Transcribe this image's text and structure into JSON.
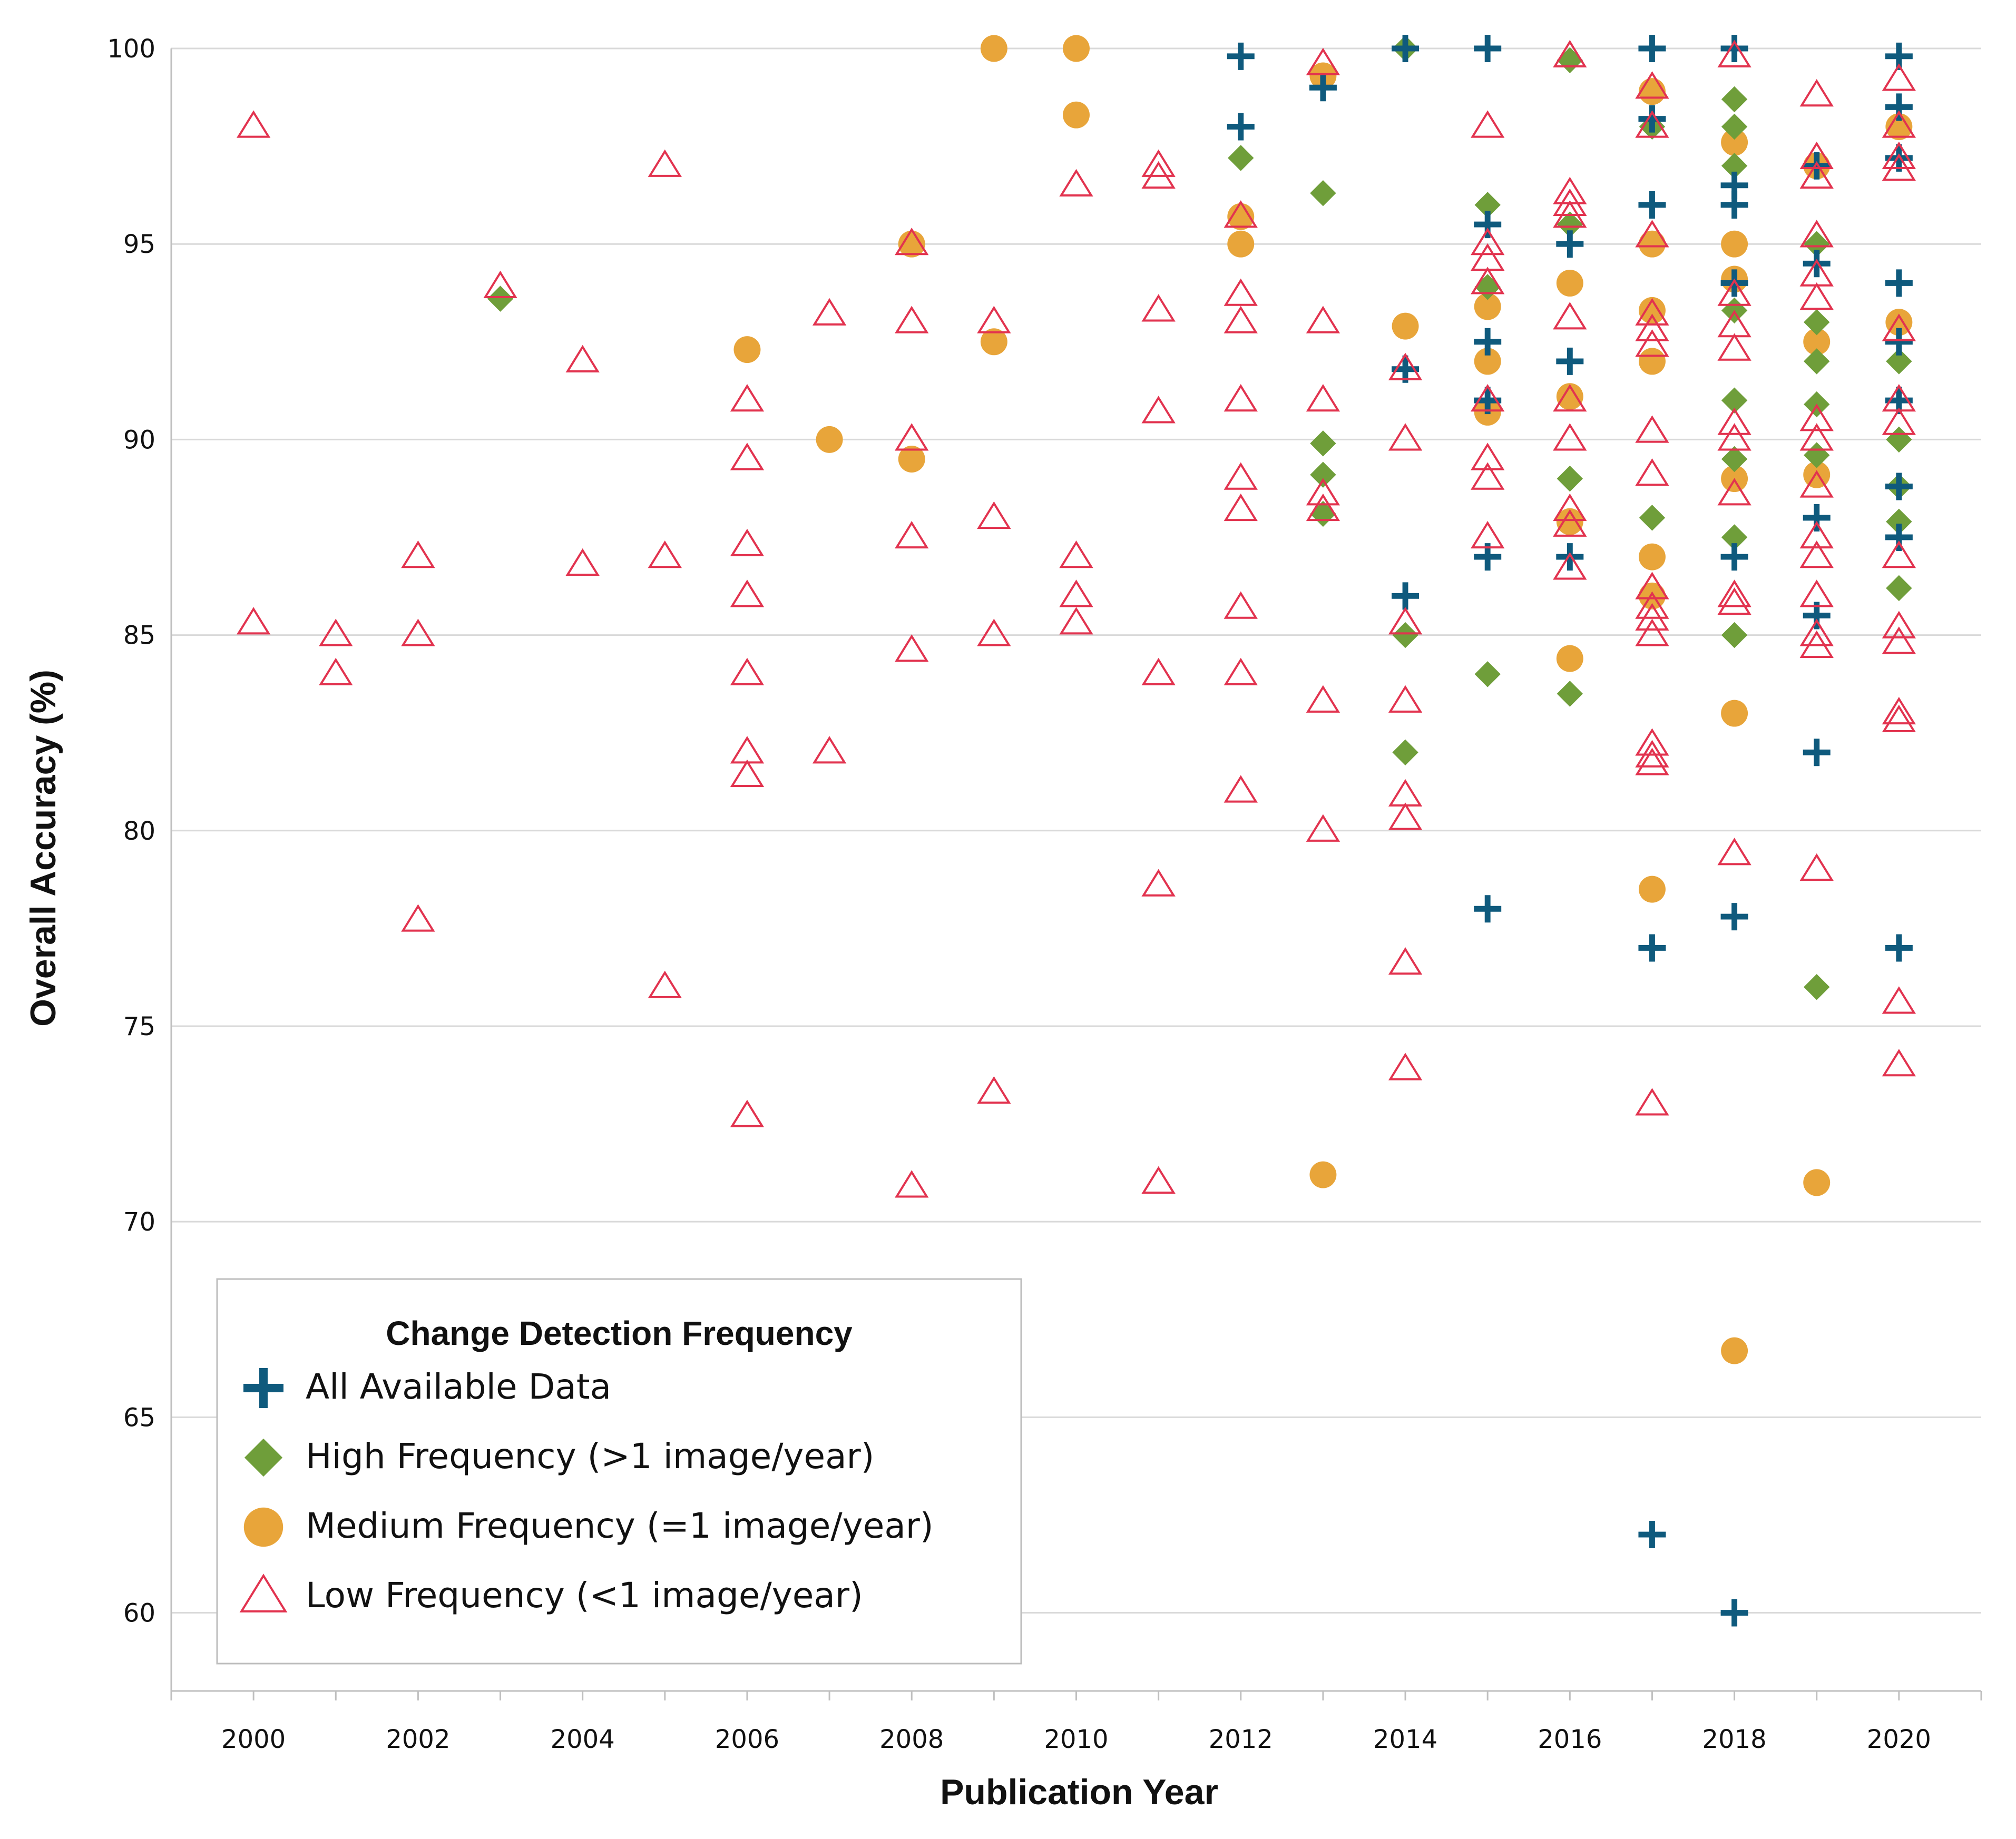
{
  "chart_data": {
    "type": "scatter",
    "title": "",
    "xlabel": "Publication Year",
    "ylabel": "Overall Accuracy (%)",
    "xlim": [
      1999,
      2021
    ],
    "ylim": [
      58,
      100
    ],
    "x_ticks": [
      2000,
      2002,
      2004,
      2006,
      2008,
      2010,
      2012,
      2014,
      2016,
      2018,
      2020
    ],
    "y_ticks": [
      60,
      65,
      70,
      75,
      80,
      85,
      90,
      95,
      100
    ],
    "grid": "horizontal",
    "legend_title": "Change Detection Frequency",
    "legend_position": "bottom-left",
    "series": [
      {
        "name": "All Available Data",
        "marker": "plus",
        "color": "#0f5a7d",
        "points": [
          [
            2012,
            99.8
          ],
          [
            2012,
            98
          ],
          [
            2013,
            99
          ],
          [
            2014,
            100
          ],
          [
            2014,
            91.8
          ],
          [
            2014,
            86
          ],
          [
            2015,
            100
          ],
          [
            2015,
            95.5
          ],
          [
            2015,
            92.5
          ],
          [
            2015,
            91
          ],
          [
            2015,
            87
          ],
          [
            2015,
            78
          ],
          [
            2016,
            95
          ],
          [
            2016,
            92
          ],
          [
            2016,
            87
          ],
          [
            2017,
            100
          ],
          [
            2017,
            98.2
          ],
          [
            2017,
            96
          ],
          [
            2017,
            77
          ],
          [
            2017,
            62
          ],
          [
            2018,
            100
          ],
          [
            2018,
            96.5
          ],
          [
            2018,
            96
          ],
          [
            2018,
            94
          ],
          [
            2018,
            87
          ],
          [
            2018,
            77.8
          ],
          [
            2018,
            60
          ],
          [
            2019,
            97
          ],
          [
            2019,
            94.5
          ],
          [
            2019,
            88
          ],
          [
            2019,
            85.5
          ],
          [
            2019,
            82
          ],
          [
            2020,
            99.8
          ],
          [
            2020,
            98.5
          ],
          [
            2020,
            97.2
          ],
          [
            2020,
            94
          ],
          [
            2020,
            92.5
          ],
          [
            2020,
            91
          ],
          [
            2020,
            88.8
          ],
          [
            2020,
            87.5
          ],
          [
            2020,
            77
          ]
        ]
      },
      {
        "name": "High Frequency (>1 image/year)",
        "marker": "diamond",
        "color": "#6f9e3a",
        "points": [
          [
            2003,
            93.6
          ],
          [
            2012,
            97.2
          ],
          [
            2013,
            96.3
          ],
          [
            2013,
            89.9
          ],
          [
            2013,
            89.1
          ],
          [
            2013,
            88.1
          ],
          [
            2014,
            100
          ],
          [
            2014,
            85
          ],
          [
            2014,
            82
          ],
          [
            2015,
            96
          ],
          [
            2015,
            93.9
          ],
          [
            2015,
            84
          ],
          [
            2016,
            99.7
          ],
          [
            2016,
            95.5
          ],
          [
            2016,
            89
          ],
          [
            2016,
            83.5
          ],
          [
            2017,
            98
          ],
          [
            2017,
            88
          ],
          [
            2018,
            98.7
          ],
          [
            2018,
            98
          ],
          [
            2018,
            97
          ],
          [
            2018,
            93.3
          ],
          [
            2018,
            91
          ],
          [
            2018,
            89.5
          ],
          [
            2018,
            87.5
          ],
          [
            2018,
            85
          ],
          [
            2019,
            95
          ],
          [
            2019,
            93
          ],
          [
            2019,
            92
          ],
          [
            2019,
            90.9
          ],
          [
            2019,
            89.6
          ],
          [
            2019,
            76
          ],
          [
            2020,
            92
          ],
          [
            2020,
            90
          ],
          [
            2020,
            88.8
          ],
          [
            2020,
            87.9
          ],
          [
            2020,
            86.2
          ]
        ]
      },
      {
        "name": "Medium Frequency (=1 image/year)",
        "marker": "circle",
        "color": "#e8a53a",
        "points": [
          [
            2006,
            92.3
          ],
          [
            2007,
            90
          ],
          [
            2008,
            95
          ],
          [
            2008,
            89.5
          ],
          [
            2009,
            100
          ],
          [
            2009,
            92.5
          ],
          [
            2010,
            100
          ],
          [
            2010,
            98.3
          ],
          [
            2012,
            95.7
          ],
          [
            2012,
            95
          ],
          [
            2013,
            99.3
          ],
          [
            2013,
            71.2
          ],
          [
            2014,
            92.9
          ],
          [
            2015,
            93.4
          ],
          [
            2015,
            92
          ],
          [
            2015,
            90.7
          ],
          [
            2016,
            94
          ],
          [
            2016,
            91.1
          ],
          [
            2016,
            87.9
          ],
          [
            2016,
            84.4
          ],
          [
            2017,
            98.9
          ],
          [
            2017,
            95
          ],
          [
            2017,
            93.3
          ],
          [
            2017,
            92
          ],
          [
            2017,
            87
          ],
          [
            2017,
            86
          ],
          [
            2017,
            78.5
          ],
          [
            2018,
            97.6
          ],
          [
            2018,
            95
          ],
          [
            2018,
            94.1
          ],
          [
            2018,
            89
          ],
          [
            2018,
            83
          ],
          [
            2018,
            66.7
          ],
          [
            2019,
            97
          ],
          [
            2019,
            92.5
          ],
          [
            2019,
            89.1
          ],
          [
            2019,
            71
          ],
          [
            2020,
            98
          ],
          [
            2020,
            93
          ]
        ]
      },
      {
        "name": "Low Frequency (<1 image/year)",
        "marker": "triangle-open",
        "color": "#e2334f",
        "points": [
          [
            2000,
            98
          ],
          [
            2000,
            85.3
          ],
          [
            2001,
            85
          ],
          [
            2001,
            84
          ],
          [
            2002,
            87
          ],
          [
            2002,
            85
          ],
          [
            2002,
            77.7
          ],
          [
            2003,
            93.9
          ],
          [
            2004,
            92
          ],
          [
            2004,
            86.8
          ],
          [
            2005,
            97
          ],
          [
            2005,
            87
          ],
          [
            2005,
            76
          ],
          [
            2006,
            91
          ],
          [
            2006,
            89.5
          ],
          [
            2006,
            87.3
          ],
          [
            2006,
            86
          ],
          [
            2006,
            84
          ],
          [
            2006,
            82
          ],
          [
            2006,
            81.4
          ],
          [
            2006,
            72.7
          ],
          [
            2007,
            93.2
          ],
          [
            2007,
            82
          ],
          [
            2008,
            95
          ],
          [
            2008,
            93
          ],
          [
            2008,
            90
          ],
          [
            2008,
            87.5
          ],
          [
            2008,
            84.6
          ],
          [
            2008,
            70.9
          ],
          [
            2009,
            93
          ],
          [
            2009,
            88
          ],
          [
            2009,
            85
          ],
          [
            2009,
            73.3
          ],
          [
            2010,
            96.5
          ],
          [
            2010,
            87
          ],
          [
            2010,
            86
          ],
          [
            2010,
            85.3
          ],
          [
            2011,
            97
          ],
          [
            2011,
            96.7
          ],
          [
            2011,
            93.3
          ],
          [
            2011,
            90.7
          ],
          [
            2011,
            84
          ],
          [
            2011,
            78.6
          ],
          [
            2011,
            71
          ],
          [
            2012,
            95.7
          ],
          [
            2012,
            93.7
          ],
          [
            2012,
            93
          ],
          [
            2012,
            91
          ],
          [
            2012,
            89
          ],
          [
            2012,
            88.2
          ],
          [
            2012,
            85.7
          ],
          [
            2012,
            84
          ],
          [
            2012,
            81
          ],
          [
            2013,
            99.6
          ],
          [
            2013,
            93
          ],
          [
            2013,
            91
          ],
          [
            2013,
            88.6
          ],
          [
            2013,
            88.2
          ],
          [
            2013,
            83.3
          ],
          [
            2013,
            80
          ],
          [
            2014,
            91.8
          ],
          [
            2014,
            90
          ],
          [
            2014,
            85.3
          ],
          [
            2014,
            83.3
          ],
          [
            2014,
            80.9
          ],
          [
            2014,
            80.3
          ],
          [
            2014,
            76.6
          ],
          [
            2014,
            73.9
          ],
          [
            2015,
            98
          ],
          [
            2015,
            95
          ],
          [
            2015,
            94.6
          ],
          [
            2015,
            94
          ],
          [
            2015,
            91
          ],
          [
            2015,
            89.5
          ],
          [
            2015,
            89
          ],
          [
            2015,
            87.5
          ],
          [
            2016,
            99.8
          ],
          [
            2016,
            96.3
          ],
          [
            2016,
            96
          ],
          [
            2016,
            95.7
          ],
          [
            2016,
            93.1
          ],
          [
            2016,
            91
          ],
          [
            2016,
            90
          ],
          [
            2016,
            88.2
          ],
          [
            2016,
            87.8
          ],
          [
            2016,
            86.7
          ],
          [
            2017,
            99
          ],
          [
            2017,
            98
          ],
          [
            2017,
            95.2
          ],
          [
            2017,
            93.2
          ],
          [
            2017,
            92.8
          ],
          [
            2017,
            92.4
          ],
          [
            2017,
            90.2
          ],
          [
            2017,
            89.1
          ],
          [
            2017,
            86.2
          ],
          [
            2017,
            85.7
          ],
          [
            2017,
            85.4
          ],
          [
            2017,
            85
          ],
          [
            2017,
            82.2
          ],
          [
            2017,
            81.9
          ],
          [
            2017,
            81.7
          ],
          [
            2017,
            73
          ],
          [
            2018,
            99.8
          ],
          [
            2018,
            93.7
          ],
          [
            2018,
            92.9
          ],
          [
            2018,
            92.3
          ],
          [
            2018,
            90.4
          ],
          [
            2018,
            90
          ],
          [
            2018,
            88.6
          ],
          [
            2018,
            86
          ],
          [
            2018,
            85.8
          ],
          [
            2018,
            79.4
          ],
          [
            2019,
            98.8
          ],
          [
            2019,
            97.2
          ],
          [
            2019,
            96.7
          ],
          [
            2019,
            95.2
          ],
          [
            2019,
            94.2
          ],
          [
            2019,
            93.6
          ],
          [
            2019,
            90.5
          ],
          [
            2019,
            90
          ],
          [
            2019,
            88.8
          ],
          [
            2019,
            87.5
          ],
          [
            2019,
            87
          ],
          [
            2019,
            86
          ],
          [
            2019,
            85
          ],
          [
            2019,
            84.7
          ],
          [
            2019,
            79
          ],
          [
            2020,
            99.2
          ],
          [
            2020,
            98
          ],
          [
            2020,
            97.2
          ],
          [
            2020,
            96.9
          ],
          [
            2020,
            92.8
          ],
          [
            2020,
            91
          ],
          [
            2020,
            90.4
          ],
          [
            2020,
            87
          ],
          [
            2020,
            85.2
          ],
          [
            2020,
            84.8
          ],
          [
            2020,
            83
          ],
          [
            2020,
            82.8
          ],
          [
            2020,
            75.6
          ],
          [
            2020,
            74
          ]
        ]
      }
    ]
  }
}
